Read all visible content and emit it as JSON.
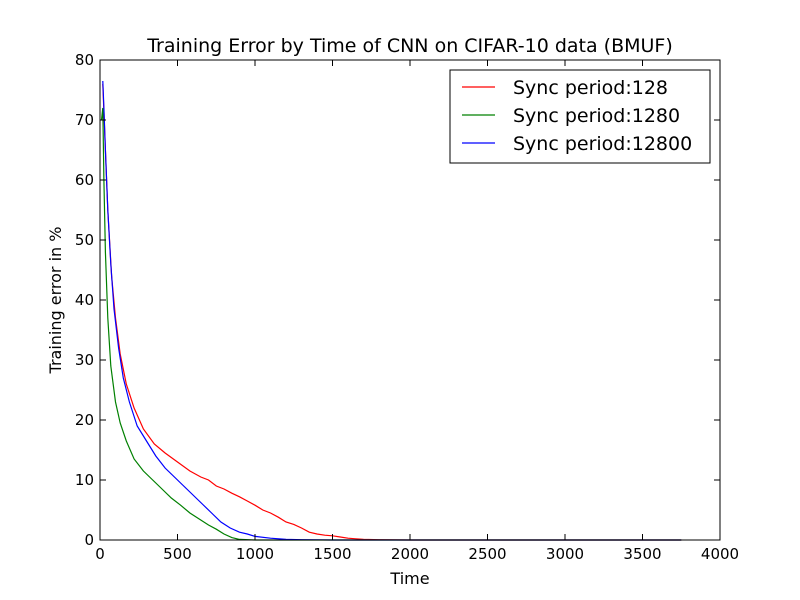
{
  "chart_data": {
    "type": "line",
    "title": "Training Error by Time of CNN on CIFAR-10 data (BMUF)",
    "xlabel": "Time",
    "ylabel": "Training error in %",
    "xlim": [
      0,
      4000
    ],
    "ylim": [
      0,
      80
    ],
    "xticks": [
      0,
      500,
      1000,
      1500,
      2000,
      2500,
      3000,
      3500,
      4000
    ],
    "yticks": [
      0,
      10,
      20,
      30,
      40,
      50,
      60,
      70,
      80
    ],
    "grid": false,
    "legend_position": "top-right",
    "series": [
      {
        "name": "Sync period:128",
        "color": "#ff0000",
        "x": [
          18,
          30,
          50,
          75,
          100,
          130,
          170,
          220,
          280,
          350,
          420,
          500,
          580,
          650,
          700,
          750,
          800,
          850,
          900,
          950,
          1000,
          1050,
          1100,
          1150,
          1200,
          1250,
          1300,
          1350,
          1400,
          1450,
          1500,
          1550,
          1600,
          1650,
          1700,
          1800,
          2000,
          2500,
          3000,
          3500,
          3750
        ],
        "y": [
          76,
          68,
          55,
          44,
          37,
          31,
          26,
          22,
          18.5,
          16,
          14.5,
          13,
          11.5,
          10.5,
          10,
          9,
          8.5,
          7.8,
          7.2,
          6.5,
          5.8,
          5,
          4.5,
          3.8,
          3,
          2.6,
          2,
          1.3,
          1,
          0.8,
          0.7,
          0.5,
          0.3,
          0.2,
          0.1,
          0.05,
          0,
          0,
          0,
          0,
          0
        ]
      },
      {
        "name": "Sync period:1280",
        "color": "#008000",
        "x": [
          10,
          18,
          25,
          35,
          50,
          70,
          100,
          130,
          170,
          220,
          280,
          340,
          400,
          460,
          520,
          580,
          640,
          700,
          750,
          800,
          850,
          900,
          1000,
          1200,
          1500,
          2000,
          3000,
          3750
        ],
        "y": [
          70,
          72,
          60,
          48,
          37,
          29,
          23,
          19.5,
          16.5,
          13.5,
          11.5,
          10,
          8.5,
          7,
          5.8,
          4.5,
          3.5,
          2.5,
          1.8,
          1,
          0.4,
          0.1,
          0,
          0,
          0,
          0,
          0,
          0
        ]
      },
      {
        "name": "Sync period:12800",
        "color": "#0000ff",
        "x": [
          18,
          25,
          35,
          50,
          70,
          90,
          120,
          150,
          190,
          240,
          300,
          360,
          420,
          480,
          540,
          600,
          660,
          720,
          780,
          840,
          900,
          950,
          1000,
          1100,
          1200,
          1300,
          1500,
          2000,
          3000,
          3750
        ],
        "y": [
          76.5,
          72,
          65,
          55,
          46,
          38.5,
          32,
          27,
          23,
          19,
          16.5,
          14,
          12,
          10.5,
          9,
          7.5,
          6,
          4.5,
          3,
          2,
          1.3,
          1,
          0.6,
          0.3,
          0.1,
          0.05,
          0,
          0,
          0,
          0
        ]
      }
    ]
  }
}
